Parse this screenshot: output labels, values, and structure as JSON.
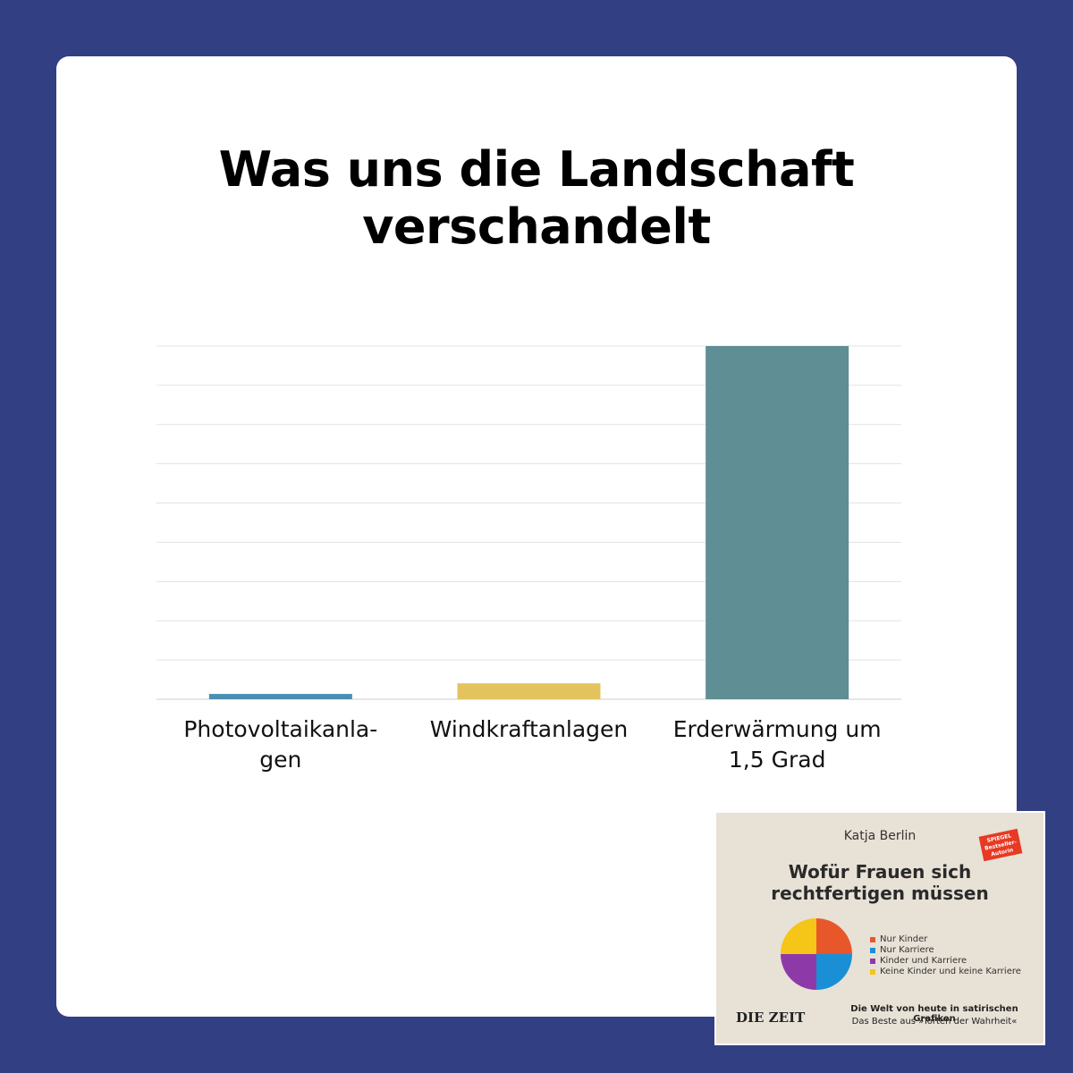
{
  "title": {
    "line1": "Was uns die Landschaft",
    "line2": "verschandelt"
  },
  "colors": {
    "background": "#323f83",
    "card": "#ffffff",
    "bar_colors": [
      "#4a8fb0",
      "#e2c35d",
      "#5f8e94"
    ]
  },
  "chart_data": {
    "type": "bar",
    "title": "Was uns die Landschaft verschandelt",
    "categories": [
      [
        "Photovoltaikanla-",
        "gen"
      ],
      [
        "Windkraftanlagen"
      ],
      [
        "Erderwärmung um",
        "1,5 Grad"
      ]
    ],
    "values": [
      1.5,
      4.5,
      100
    ],
    "ylim": [
      0,
      100
    ],
    "gridlines": 9,
    "xlabel": "",
    "ylabel": "",
    "legend": "none",
    "grid": true
  },
  "book": {
    "author": "Katja Berlin",
    "badge_lines": [
      "SPIEGEL",
      "Bestseller-",
      "Autorin"
    ],
    "title_line1": "Wofür Frauen sich",
    "title_line2": "rechtfertigen müssen",
    "legend": [
      {
        "label": "Nur Kinder",
        "color": "#e8572a"
      },
      {
        "label": "Nur Karriere",
        "color": "#1a8fd6"
      },
      {
        "label": "Kinder und Karriere",
        "color": "#8d3aa8"
      },
      {
        "label": "Keine Kinder und keine Karriere",
        "color": "#f5c518"
      }
    ],
    "publisher": "DIE ZEIT",
    "tagline1": "Die Welt von heute in satirischen Grafiken",
    "tagline2": "Das Beste aus »Torten der Wahrheit«"
  }
}
